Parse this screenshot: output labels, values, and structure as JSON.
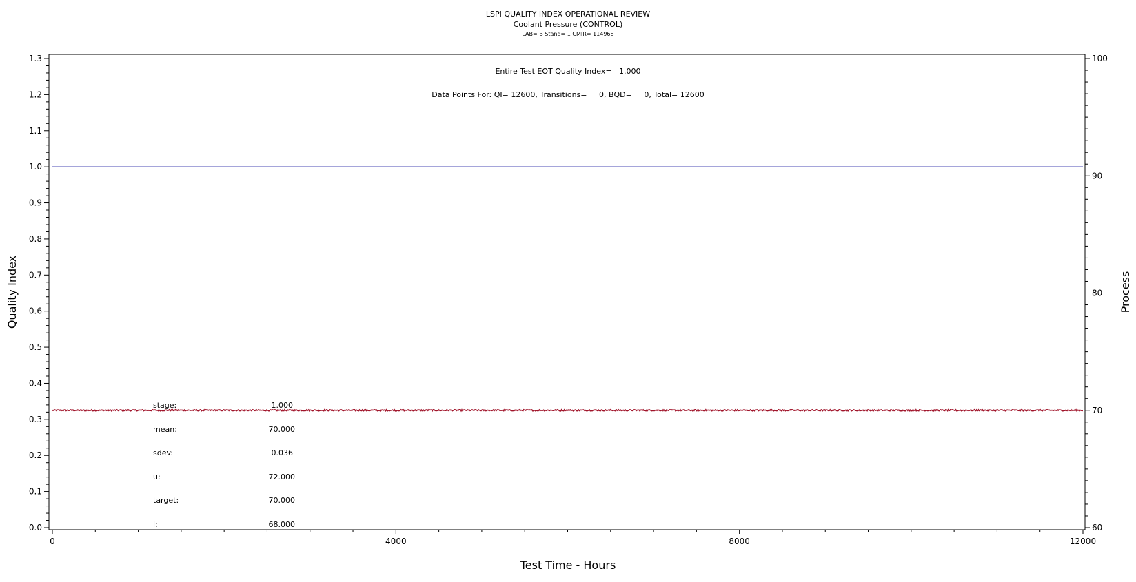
{
  "header": {
    "title": "LSPI QUALITY INDEX OPERATIONAL REVIEW",
    "subtitle": "Coolant Pressure (CONTROL)",
    "meta": "LAB= B Stand= 1 CMIR= 114968"
  },
  "annotations": {
    "eot": "Entire Test EOT Quality Index=   1.000",
    "points": "Data Points For: QI= 12600, Transitions=     0, BQD=     0, Total= 12600"
  },
  "stats": [
    {
      "label": "stage:",
      "value": "1.000"
    },
    {
      "label": "mean:",
      "value": "70.000"
    },
    {
      "label": "sdev:",
      "value": "0.036"
    },
    {
      "label": "u:",
      "value": "72.000"
    },
    {
      "label": "target:",
      "value": "70.000"
    },
    {
      "label": "l:",
      "value": "68.000"
    }
  ],
  "colors": {
    "qi_line": "#4b4bb4",
    "process_line": "#a0142a",
    "axis": "#000000"
  },
  "chart_data": {
    "type": "line",
    "title": "LSPI QUALITY INDEX OPERATIONAL REVIEW",
    "subtitle": "Coolant Pressure (CONTROL)",
    "xlabel": "Test Time - Hours",
    "ylabel": "Quality Index",
    "y2label": "Process",
    "xlim": [
      0,
      12000
    ],
    "ylim": [
      0,
      1.3
    ],
    "y2lim": [
      60,
      100
    ],
    "x_ticks": [
      0,
      4000,
      8000,
      12000
    ],
    "x_tick_labels": [
      "0",
      "4000",
      "8000",
      "12000"
    ],
    "y_ticks": [
      0,
      0.1,
      0.2,
      0.3,
      0.4,
      0.5,
      0.6,
      0.7,
      0.8,
      0.9,
      1.0,
      1.1,
      1.2,
      1.3
    ],
    "y_tick_labels": [
      "0.0",
      "0.1",
      "0.2",
      "0.3",
      "0.4",
      "0.5",
      "0.6",
      "0.7",
      "0.8",
      "0.9",
      "1.0",
      "1.1",
      "1.2",
      "1.3"
    ],
    "y2_ticks": [
      60,
      70,
      80,
      90,
      100
    ],
    "y2_tick_labels": [
      "60",
      "70",
      "80",
      "90",
      "100"
    ],
    "grid": false,
    "series": [
      {
        "axis": "left",
        "x": [
          0,
          12000
        ],
        "values": [
          1.0,
          1.0
        ]
      },
      {
        "axis": "right",
        "x": [
          0,
          12000
        ],
        "values": [
          70.0,
          70.0
        ],
        "sdev": 0.036
      }
    ]
  }
}
